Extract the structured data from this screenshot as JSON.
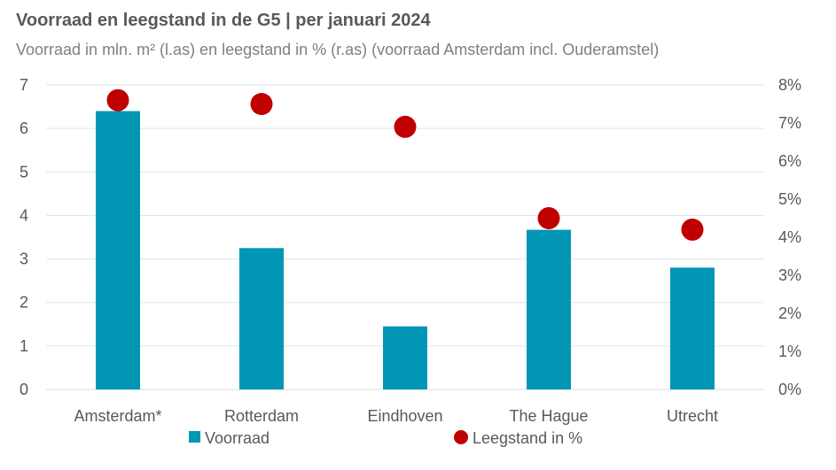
{
  "title": "Voorraad en leegstand in de G5 | per januari 2024",
  "subtitle": "Voorraad in mln. m² (l.as) en leegstand in % (r.as) (voorraad Amsterdam incl. Ouderamstel)",
  "colors": {
    "bar": "#0096b4",
    "dot": "#c00000",
    "grid": "#d9e6ef",
    "axis": "#d9d9d9"
  },
  "chart_data": {
    "type": "bar",
    "categories": [
      "Amsterdam*",
      "Rotterdam",
      "Eindhoven",
      "The Hague",
      "Utrecht"
    ],
    "series": [
      {
        "name": "Voorraad",
        "type": "bar",
        "axis": "left",
        "values": [
          6.4,
          3.25,
          1.45,
          3.67,
          2.8
        ]
      },
      {
        "name": "Leegstand in %",
        "type": "scatter",
        "axis": "right",
        "values": [
          7.6,
          7.5,
          6.9,
          4.5,
          4.2
        ]
      }
    ],
    "y_left": {
      "min": 0,
      "max": 7,
      "ticks": [
        "0",
        "1",
        "2",
        "3",
        "4",
        "5",
        "6",
        "7"
      ]
    },
    "y_right": {
      "min": 0,
      "max": 8,
      "ticks": [
        "0%",
        "1%",
        "2%",
        "3%",
        "4%",
        "5%",
        "6%",
        "7%",
        "8%"
      ]
    },
    "grid": true,
    "legend": "bottom"
  }
}
